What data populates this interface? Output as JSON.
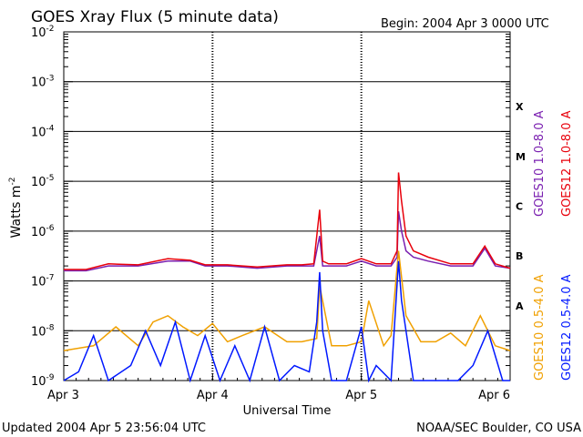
{
  "chart_data": {
    "type": "line",
    "title": "GOES Xray Flux (5 minute data)",
    "begin_label": "Begin:  2004 Apr 3 0000 UTC",
    "ylabel_base": "Watts m",
    "ylabel_exp": "-2",
    "xlabel": "Universal Time",
    "y_scale": "log",
    "ylim": [
      1e-09,
      0.01
    ],
    "y_ticks": [
      {
        "base": "10",
        "exp": "-2"
      },
      {
        "base": "10",
        "exp": "-3"
      },
      {
        "base": "10",
        "exp": "-4"
      },
      {
        "base": "10",
        "exp": "-5"
      },
      {
        "base": "10",
        "exp": "-6"
      },
      {
        "base": "10",
        "exp": "-7"
      },
      {
        "base": "10",
        "exp": "-8"
      },
      {
        "base": "10",
        "exp": "-9"
      }
    ],
    "x_range_days": [
      0,
      3
    ],
    "x_ticks": [
      "Apr 3",
      "Apr 4",
      "Apr 5",
      "Apr 6"
    ],
    "flare_classes": [
      "X",
      "M",
      "C",
      "B",
      "A"
    ],
    "grid": true,
    "legend_placement": "right",
    "series": [
      {
        "name": "GOES10 1.0-8.0 A",
        "color": "#7a1fb0",
        "x": [
          0.0,
          0.15,
          0.3,
          0.5,
          0.7,
          0.85,
          0.95,
          1.1,
          1.3,
          1.5,
          1.6,
          1.68,
          1.72,
          1.74,
          1.78,
          1.9,
          2.0,
          2.1,
          2.2,
          2.24,
          2.25,
          2.27,
          2.3,
          2.35,
          2.45,
          2.6,
          2.75,
          2.83,
          2.9,
          3.0
        ],
        "y": [
          1.6e-07,
          1.6e-07,
          2e-07,
          2e-07,
          2.5e-07,
          2.5e-07,
          2e-07,
          2e-07,
          1.8e-07,
          2e-07,
          2e-07,
          2e-07,
          8e-07,
          2e-07,
          2e-07,
          2e-07,
          2.5e-07,
          2e-07,
          2e-07,
          3e-07,
          2.5e-06,
          1e-06,
          4e-07,
          3e-07,
          2.5e-07,
          2e-07,
          2e-07,
          4.5e-07,
          2e-07,
          1.8e-07
        ]
      },
      {
        "name": "GOES12 1.0-8.0 A",
        "color": "#e8000b",
        "x": [
          0.0,
          0.15,
          0.3,
          0.5,
          0.7,
          0.85,
          0.95,
          1.1,
          1.3,
          1.5,
          1.6,
          1.68,
          1.72,
          1.74,
          1.78,
          1.9,
          2.0,
          2.1,
          2.2,
          2.24,
          2.25,
          2.27,
          2.3,
          2.35,
          2.45,
          2.6,
          2.75,
          2.83,
          2.9,
          3.0
        ],
        "y": [
          1.7e-07,
          1.7e-07,
          2.2e-07,
          2.1e-07,
          2.8e-07,
          2.6e-07,
          2.1e-07,
          2.1e-07,
          1.9e-07,
          2.1e-07,
          2.1e-07,
          2.2e-07,
          2.7e-06,
          2.5e-07,
          2.2e-07,
          2.2e-07,
          2.8e-07,
          2.2e-07,
          2.2e-07,
          4e-07,
          1.5e-05,
          4e-06,
          8e-07,
          4e-07,
          3e-07,
          2.2e-07,
          2.2e-07,
          5e-07,
          2.2e-07,
          1.8e-07
        ]
      },
      {
        "name": "GOES10 0.5-4.0 A",
        "color": "#f0a000",
        "x": [
          0.0,
          0.2,
          0.35,
          0.5,
          0.6,
          0.7,
          0.8,
          0.9,
          1.0,
          1.1,
          1.2,
          1.35,
          1.5,
          1.6,
          1.7,
          1.72,
          1.8,
          1.9,
          2.0,
          2.05,
          2.15,
          2.2,
          2.25,
          2.3,
          2.4,
          2.5,
          2.6,
          2.7,
          2.8,
          2.9,
          3.0
        ],
        "y": [
          4e-09,
          5e-09,
          1.2e-08,
          5e-09,
          1.5e-08,
          2e-08,
          1.2e-08,
          8e-09,
          1.4e-08,
          6e-09,
          8e-09,
          1.2e-08,
          6e-09,
          6e-09,
          7e-09,
          8e-08,
          5e-09,
          5e-09,
          6e-09,
          4e-08,
          5e-09,
          8e-09,
          4e-07,
          2e-08,
          6e-09,
          6e-09,
          9e-09,
          5e-09,
          2e-08,
          5e-09,
          4e-09
        ]
      },
      {
        "name": "GOES12 0.5-4.0 A",
        "color": "#0018ff",
        "x": [
          0.0,
          0.1,
          0.2,
          0.3,
          0.45,
          0.55,
          0.65,
          0.75,
          0.85,
          0.95,
          1.05,
          1.15,
          1.25,
          1.35,
          1.45,
          1.55,
          1.65,
          1.7,
          1.72,
          1.74,
          1.8,
          1.9,
          2.0,
          2.05,
          2.1,
          2.2,
          2.25,
          2.27,
          2.3,
          2.35,
          2.45,
          2.55,
          2.65,
          2.75,
          2.85,
          2.95,
          3.0
        ],
        "y": [
          1e-09,
          1.5e-09,
          8e-09,
          1e-09,
          2e-09,
          1e-08,
          2e-09,
          1.5e-08,
          1e-09,
          8e-09,
          1e-09,
          5e-09,
          1e-09,
          1.2e-08,
          1e-09,
          2e-09,
          1.5e-09,
          1.5e-08,
          1.5e-07,
          1e-08,
          1e-09,
          1e-09,
          1.2e-08,
          1e-09,
          2e-09,
          1e-09,
          2.5e-07,
          4e-08,
          1e-08,
          1e-09,
          1e-09,
          1e-09,
          1e-09,
          2e-09,
          1e-08,
          1e-09,
          1e-09
        ]
      }
    ]
  },
  "footer": {
    "updated": "Updated 2004 Apr  5 23:56:04 UTC",
    "credit": "NOAA/SEC Boulder, CO USA"
  }
}
